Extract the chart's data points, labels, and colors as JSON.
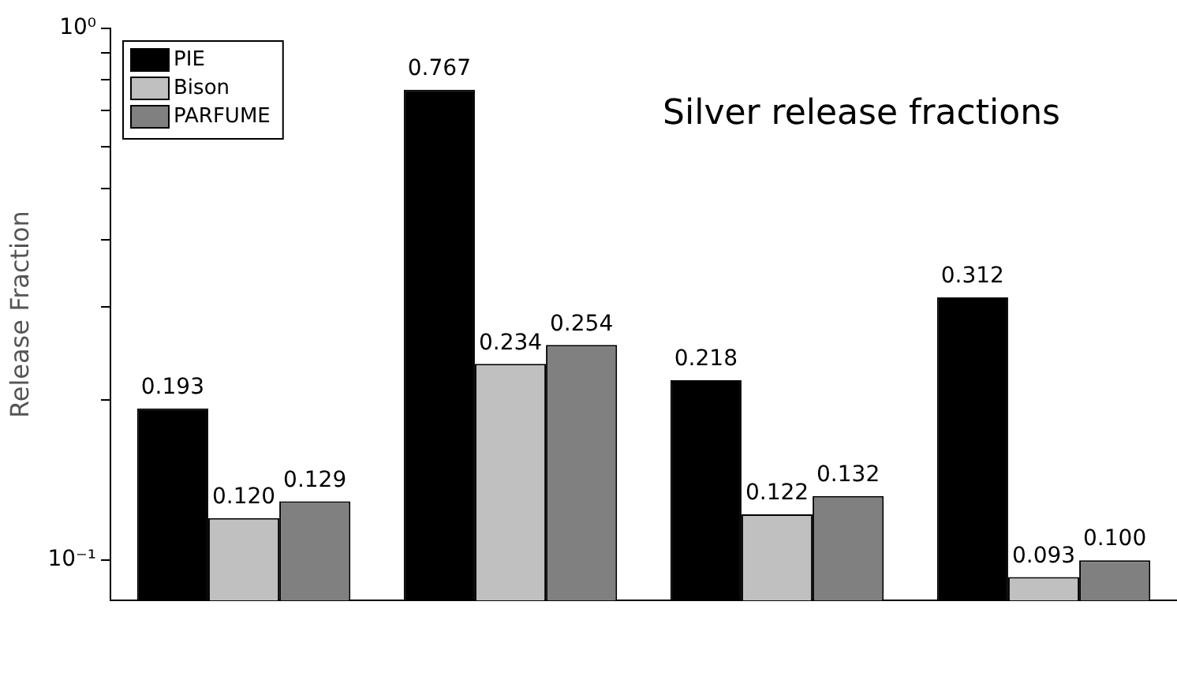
{
  "chart_data": {
    "type": "bar",
    "title": "Silver release fractions",
    "ylabel": "Release Fraction",
    "categories": [
      null,
      null,
      null,
      null
    ],
    "series": [
      {
        "name": "PIE",
        "color": "#000000",
        "values": [
          0.193,
          0.767,
          0.218,
          0.312
        ],
        "value_labels": [
          "0.193",
          "0.767",
          "0.218",
          "0.312"
        ]
      },
      {
        "name": "Bison",
        "color": "#c0c0c0",
        "values": [
          0.12,
          0.234,
          0.122,
          0.093
        ],
        "value_labels": [
          "0.120",
          "0.234",
          "0.122",
          "0.093"
        ]
      },
      {
        "name": "PARFUME",
        "color": "#808080",
        "values": [
          0.129,
          0.254,
          0.132,
          0.1
        ],
        "value_labels": [
          "0.129",
          "0.254",
          "0.132",
          "0.100"
        ]
      }
    ],
    "log": true,
    "ylim": [
      0.084,
      1
    ],
    "yticks": [
      {
        "value": 0.1,
        "label": "10⁻¹"
      },
      {
        "value": 0.2,
        "label": null
      },
      {
        "value": 0.3,
        "label": null
      },
      {
        "value": 0.4,
        "label": null
      },
      {
        "value": 0.5,
        "label": null
      },
      {
        "value": 0.6,
        "label": null
      },
      {
        "value": 0.7,
        "label": null
      },
      {
        "value": 0.8,
        "label": null
      },
      {
        "value": 0.9,
        "label": null
      },
      {
        "value": 1,
        "label": "10⁰"
      }
    ],
    "legend": "top left",
    "grid": false
  }
}
